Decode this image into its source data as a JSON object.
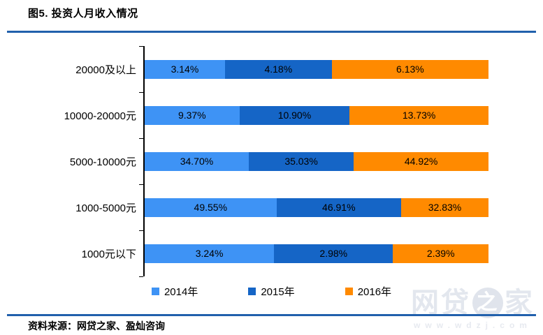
{
  "title": "图5. 投资人月收入情况",
  "source": "资料来源：网贷之家、盈灿咨询",
  "watermark": {
    "name_prefix": "网贷",
    "name_circled": "之",
    "name_suffix": "家",
    "url": "www.wdzj.com"
  },
  "colors": {
    "rule_blue": "#2160AC",
    "axis_black": "#000000",
    "series_2014": "#3E93F5",
    "series_2015": "#1565C6",
    "series_2016": "#FF8A00"
  },
  "chart_data": {
    "type": "bar",
    "variant": "horizontal-100pct-stacked",
    "title": "图5. 投资人月收入情况",
    "categories": [
      "20000及以上",
      "10000-20000元",
      "5000-10000元",
      "1000-5000元",
      "1000元以下"
    ],
    "series": [
      {
        "name": "2014年",
        "color": "#3E93F5",
        "values": [
          3.14,
          9.37,
          34.7,
          49.55,
          3.24
        ]
      },
      {
        "name": "2015年",
        "color": "#1565C6",
        "values": [
          4.18,
          10.9,
          35.03,
          46.91,
          2.98
        ]
      },
      {
        "name": "2016年",
        "color": "#FF8A00",
        "values": [
          6.13,
          13.73,
          44.92,
          32.83,
          2.39
        ]
      }
    ],
    "value_suffix": "%",
    "value_decimals": 2,
    "legend_position": "bottom",
    "grid": false,
    "xlabel": "",
    "ylabel": ""
  }
}
